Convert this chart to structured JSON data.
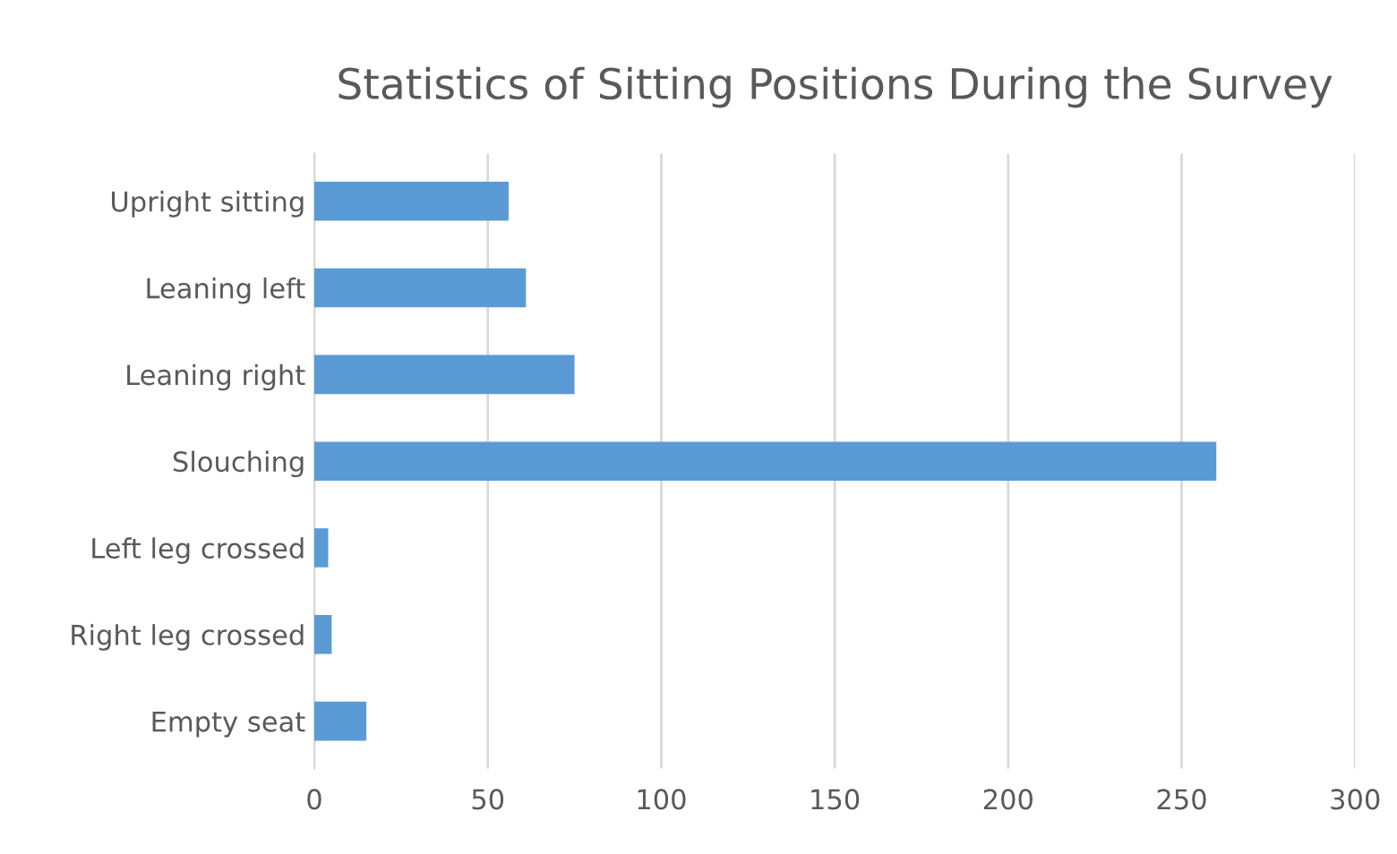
{
  "chart_data": {
    "type": "bar",
    "orientation": "horizontal",
    "title": "Statistics of Sitting Positions During the Survey",
    "categories": [
      "Upright sitting",
      "Leaning left",
      "Leaning right",
      "Slouching",
      "Left leg crossed",
      "Right leg crossed",
      "Empty seat"
    ],
    "values": [
      56,
      61,
      75,
      260,
      4,
      5,
      15
    ],
    "color": "#5b9bd5",
    "xlim": [
      0,
      300
    ],
    "xticks": [
      0,
      50,
      100,
      150,
      200,
      250,
      300
    ],
    "grid": "x"
  }
}
